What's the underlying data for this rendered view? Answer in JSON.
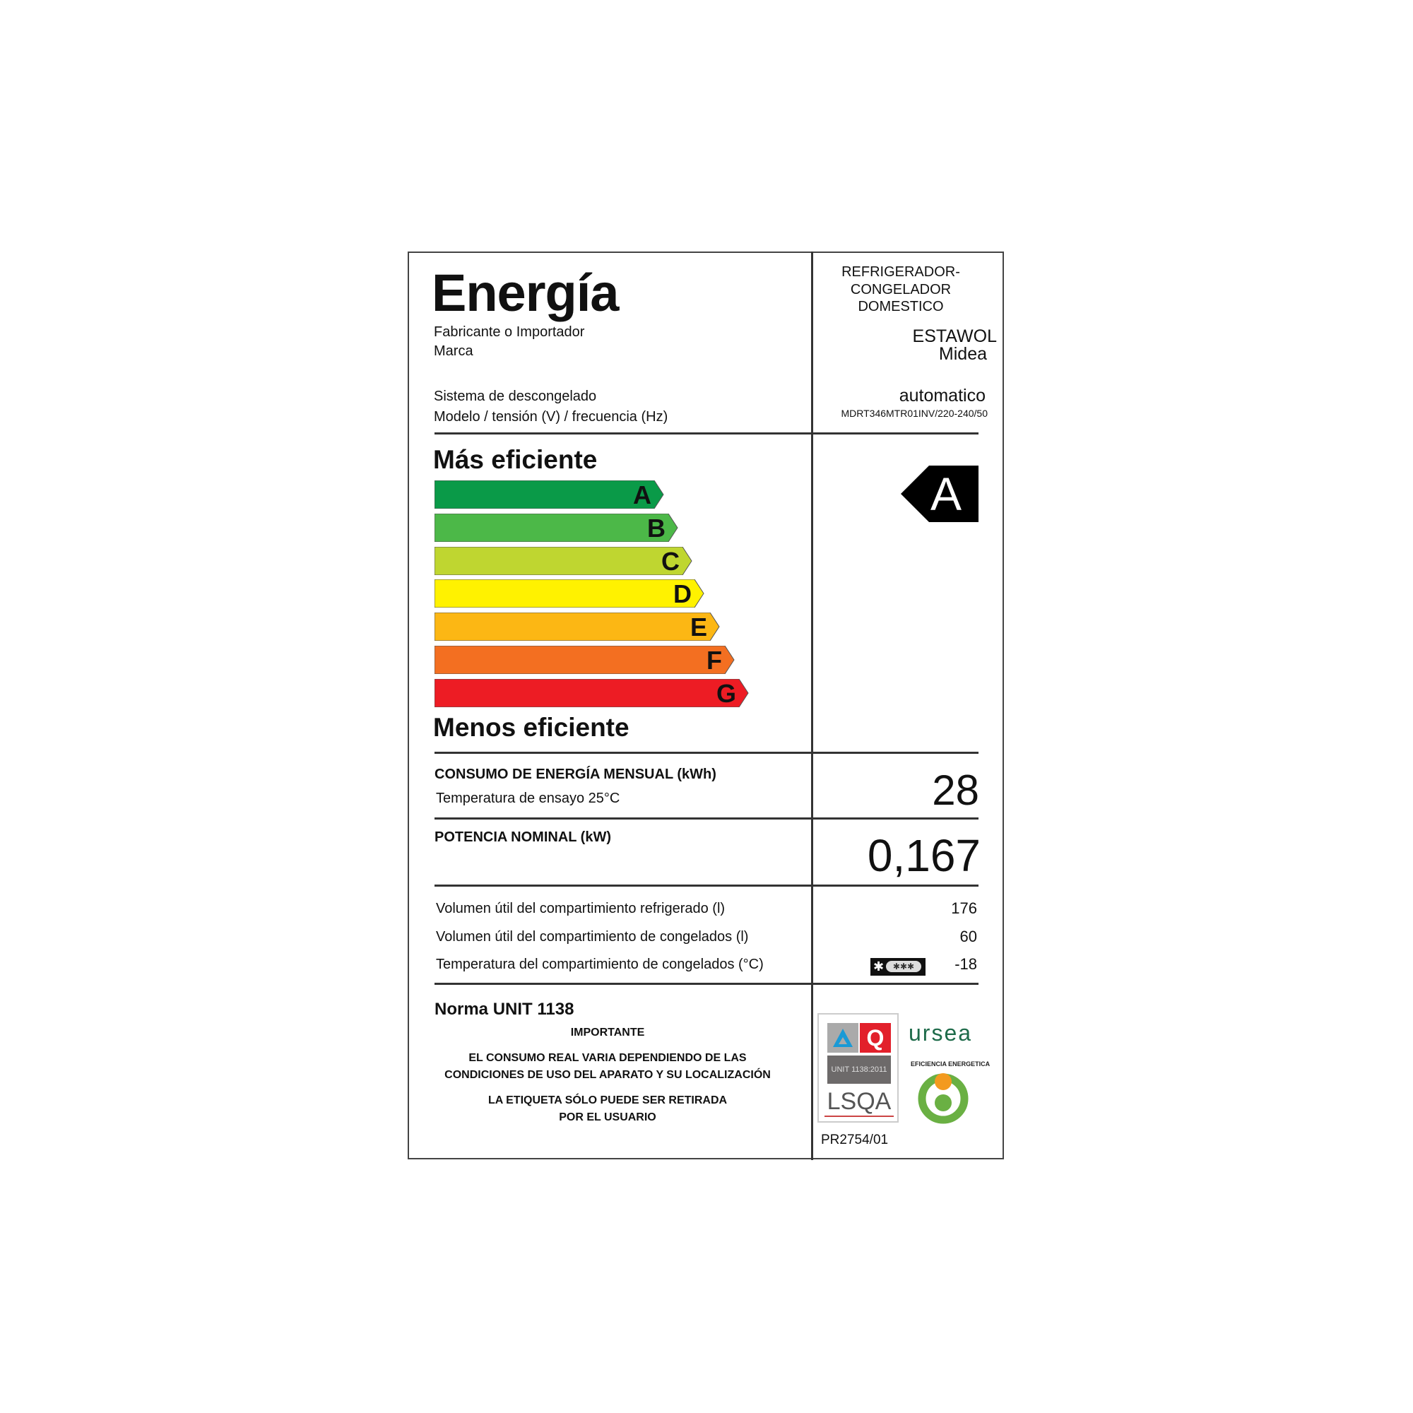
{
  "header": {
    "title": "Energía",
    "manufacturer_label": "Fabricante o Importador",
    "brand_label": "Marca",
    "defrost_label": "Sistema de descongelado",
    "model_label": "Modelo / tensión (V) / frecuencia (Hz)",
    "appliance_type": [
      "REFRIGERADOR-",
      "CONGELADOR",
      "DOMESTICO"
    ],
    "manufacturer": "ESTAWOL",
    "brand": "Midea",
    "defrost": "automatico",
    "model": "MDRT346MTR01INV/220-240/50"
  },
  "scale": {
    "top_label": "Más eficiente",
    "bottom_label": "Menos eficiente",
    "classes": [
      {
        "letter": "A",
        "color": "#0a9a48"
      },
      {
        "letter": "B",
        "color": "#4cb848"
      },
      {
        "letter": "C",
        "color": "#bfd630"
      },
      {
        "letter": "D",
        "color": "#fff200"
      },
      {
        "letter": "E",
        "color": "#fcb714"
      },
      {
        "letter": "F",
        "color": "#f36f21"
      },
      {
        "letter": "G",
        "color": "#ed1c24"
      }
    ],
    "rating": "A"
  },
  "consumption": {
    "label": "CONSUMO DE ENERGÍA MENSUAL (kWh)",
    "sub_label": "Temperatura de ensayo 25°C",
    "value": "28"
  },
  "power": {
    "label": "POTENCIA NOMINAL (kW)",
    "value": "0,167"
  },
  "specs": [
    {
      "label": "Volumen útil del compartimiento refrigerado (l)",
      "value": "176"
    },
    {
      "label": "Volumen útil del compartimiento de congelados (l)",
      "value": "60"
    },
    {
      "label": "Temperatura del compartimiento de congelados (°C)",
      "value": "-18"
    }
  ],
  "star_rating_icon": "four-star-freezer-icon",
  "footer": {
    "norm": "Norma UNIT 1138",
    "important": "IMPORTANTE",
    "notice1": [
      "EL CONSUMO REAL VARIA DEPENDIENDO DE LAS",
      "CONDICIONES DE USO DEL APARATO Y SU LOCALIZACIÓN"
    ],
    "notice2": [
      "LA ETIQUETA SÓLO PUEDE SER RETIRADA",
      "POR EL USUARIO"
    ],
    "cert_code": "PR2754/01",
    "logos": {
      "lsqa": "LSQA",
      "unit": "UNIT 1138:2011",
      "ursea": "ursea",
      "eficiencia": "EFICIENCIA ENERGETICA"
    }
  }
}
